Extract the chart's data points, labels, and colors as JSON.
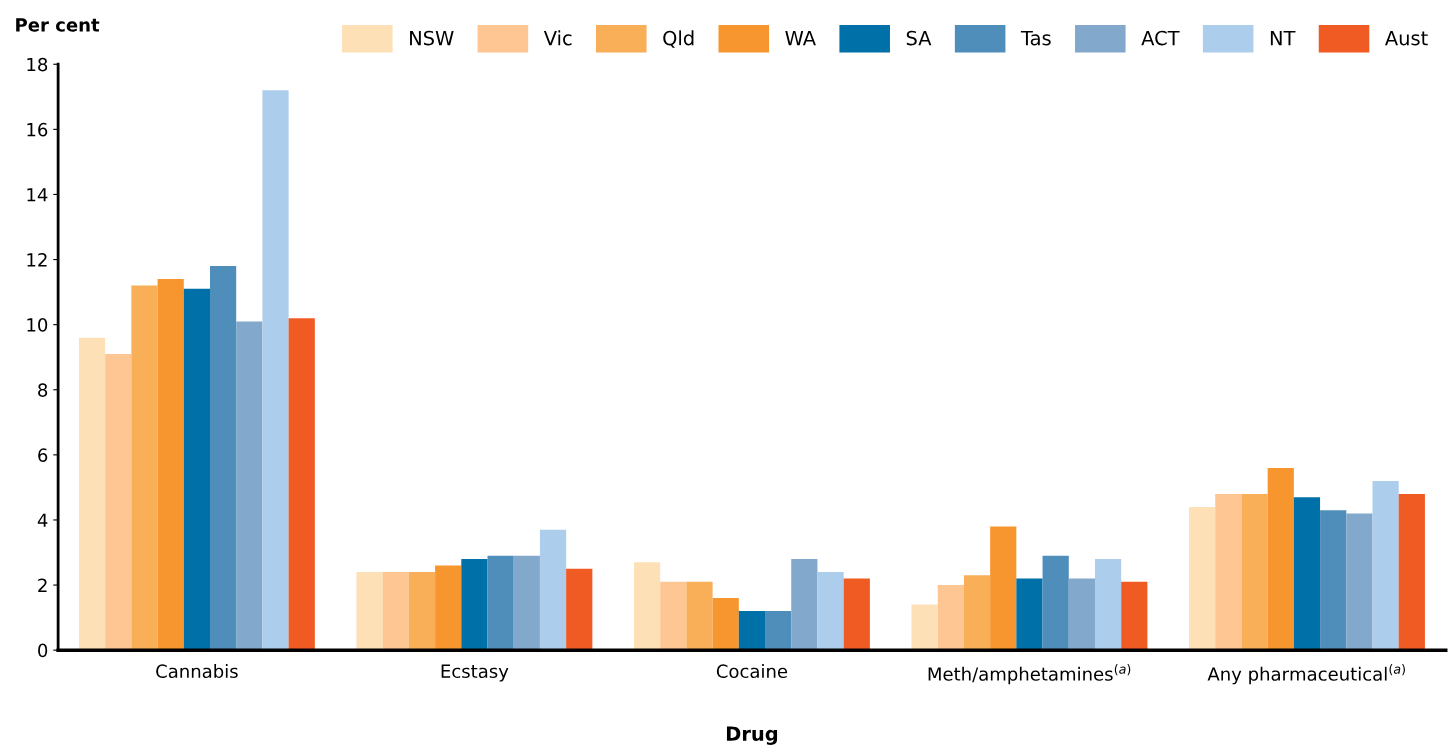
{
  "chart_data": {
    "type": "bar",
    "ylabel": "Per cent",
    "xlabel": "Drug",
    "categories": [
      "Cannabis",
      "Ecstasy",
      "Cocaine",
      "Meth/amphetamines$^{(a)}$",
      "Any pharmaceutical$^{(a)}$"
    ],
    "series": [
      {
        "name": "NSW",
        "color": "#fde0b6",
        "values": [
          9.6,
          2.4,
          2.7,
          1.4,
          4.4
        ]
      },
      {
        "name": "Vic",
        "color": "#fdc692",
        "values": [
          9.1,
          2.4,
          2.1,
          2.0,
          4.8
        ]
      },
      {
        "name": "Qld",
        "color": "#f9ae58",
        "values": [
          11.2,
          2.4,
          2.1,
          2.3,
          4.8
        ]
      },
      {
        "name": "WA",
        "color": "#f7962f",
        "values": [
          11.4,
          2.6,
          1.6,
          3.8,
          5.6
        ]
      },
      {
        "name": "SA",
        "color": "#0070a8",
        "values": [
          11.1,
          2.8,
          1.2,
          2.2,
          4.7
        ]
      },
      {
        "name": "Tas",
        "color": "#4f8dbb",
        "values": [
          11.8,
          2.9,
          1.2,
          2.9,
          4.3
        ]
      },
      {
        "name": "ACT",
        "color": "#82a8cc",
        "values": [
          10.1,
          2.9,
          2.8,
          2.2,
          4.2
        ]
      },
      {
        "name": "NT",
        "color": "#accdeb",
        "values": [
          17.2,
          3.7,
          2.4,
          2.8,
          5.2
        ]
      },
      {
        "name": "Aust",
        "color": "#f05a23",
        "values": [
          10.2,
          2.5,
          2.2,
          2.1,
          4.8
        ]
      }
    ],
    "ylim": [
      0,
      18
    ],
    "yticks": [
      0,
      2,
      4,
      6,
      8,
      10,
      12,
      14,
      16,
      18
    ],
    "grid": false,
    "legend": "top right"
  }
}
